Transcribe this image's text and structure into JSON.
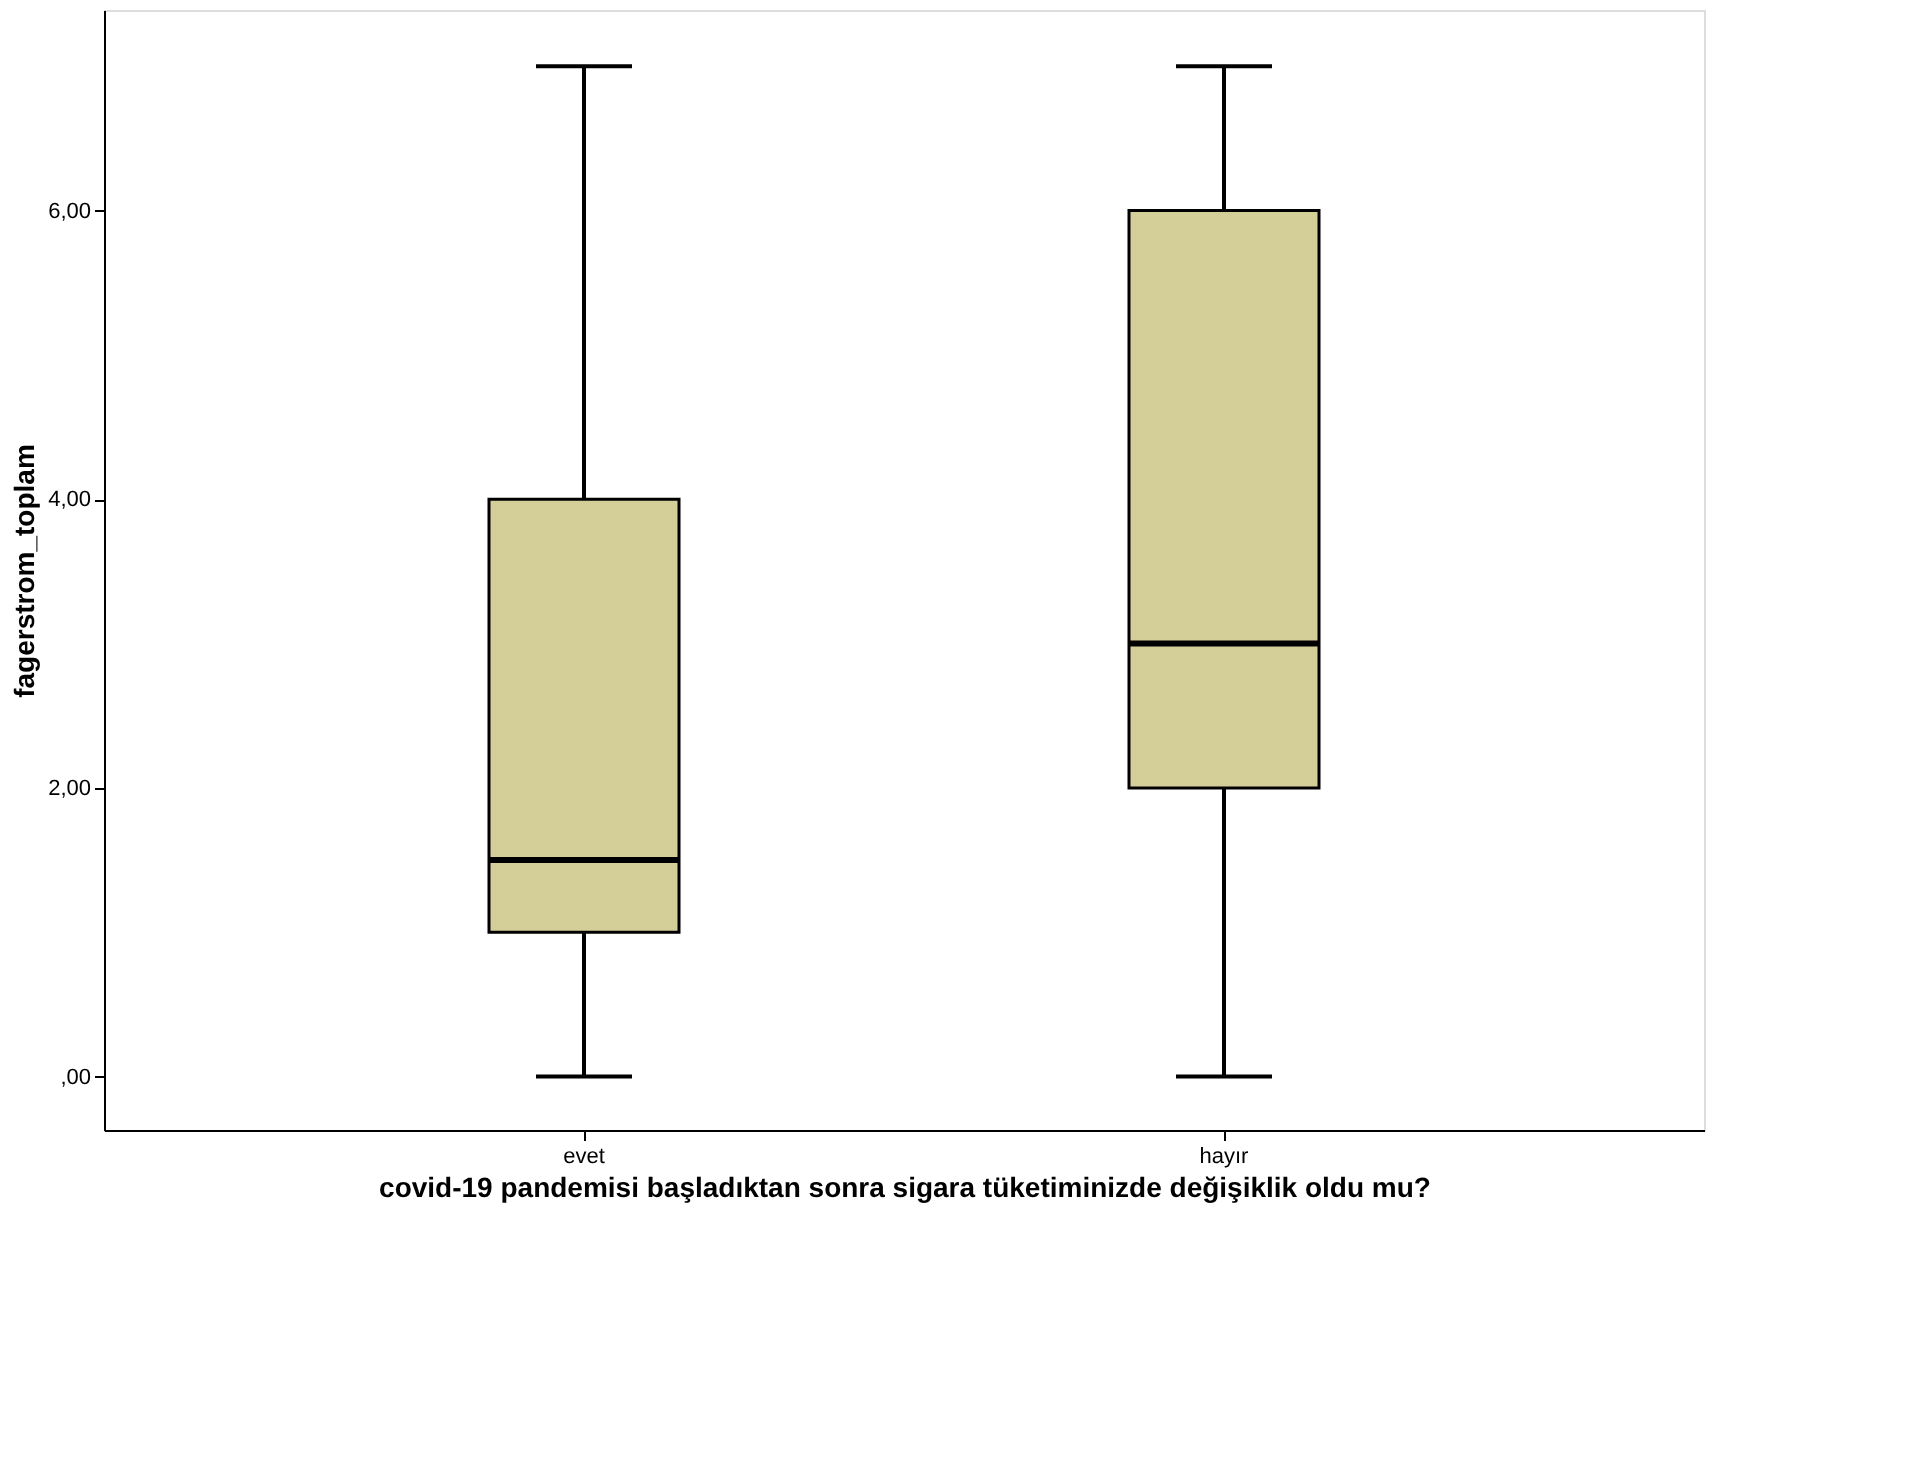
{
  "chart_data": {
    "type": "box",
    "xlabel": "covid-19 pandemisi başladıktan sonra sigara tüketiminizde değişiklik oldu mu?",
    "ylabel": "fagerstrom_toplam",
    "categories": [
      "evet",
      "hayır"
    ],
    "series": [
      {
        "color": "#d4cf98",
        "boxes": [
          {
            "low": 0,
            "q1": 1,
            "median": 1.5,
            "q3": 4,
            "high": 7
          },
          {
            "low": 0,
            "q1": 2,
            "median": 3,
            "q3": 6,
            "high": 7
          }
        ]
      }
    ],
    "ylim": [
      -0.37,
      7.39
    ],
    "yticks": [
      {
        "value": 0,
        "label": ",00"
      },
      {
        "value": 2,
        "label": "2,00"
      },
      {
        "value": 4,
        "label": "4,00"
      },
      {
        "value": 6,
        "label": "6,00"
      }
    ],
    "grid": false
  }
}
